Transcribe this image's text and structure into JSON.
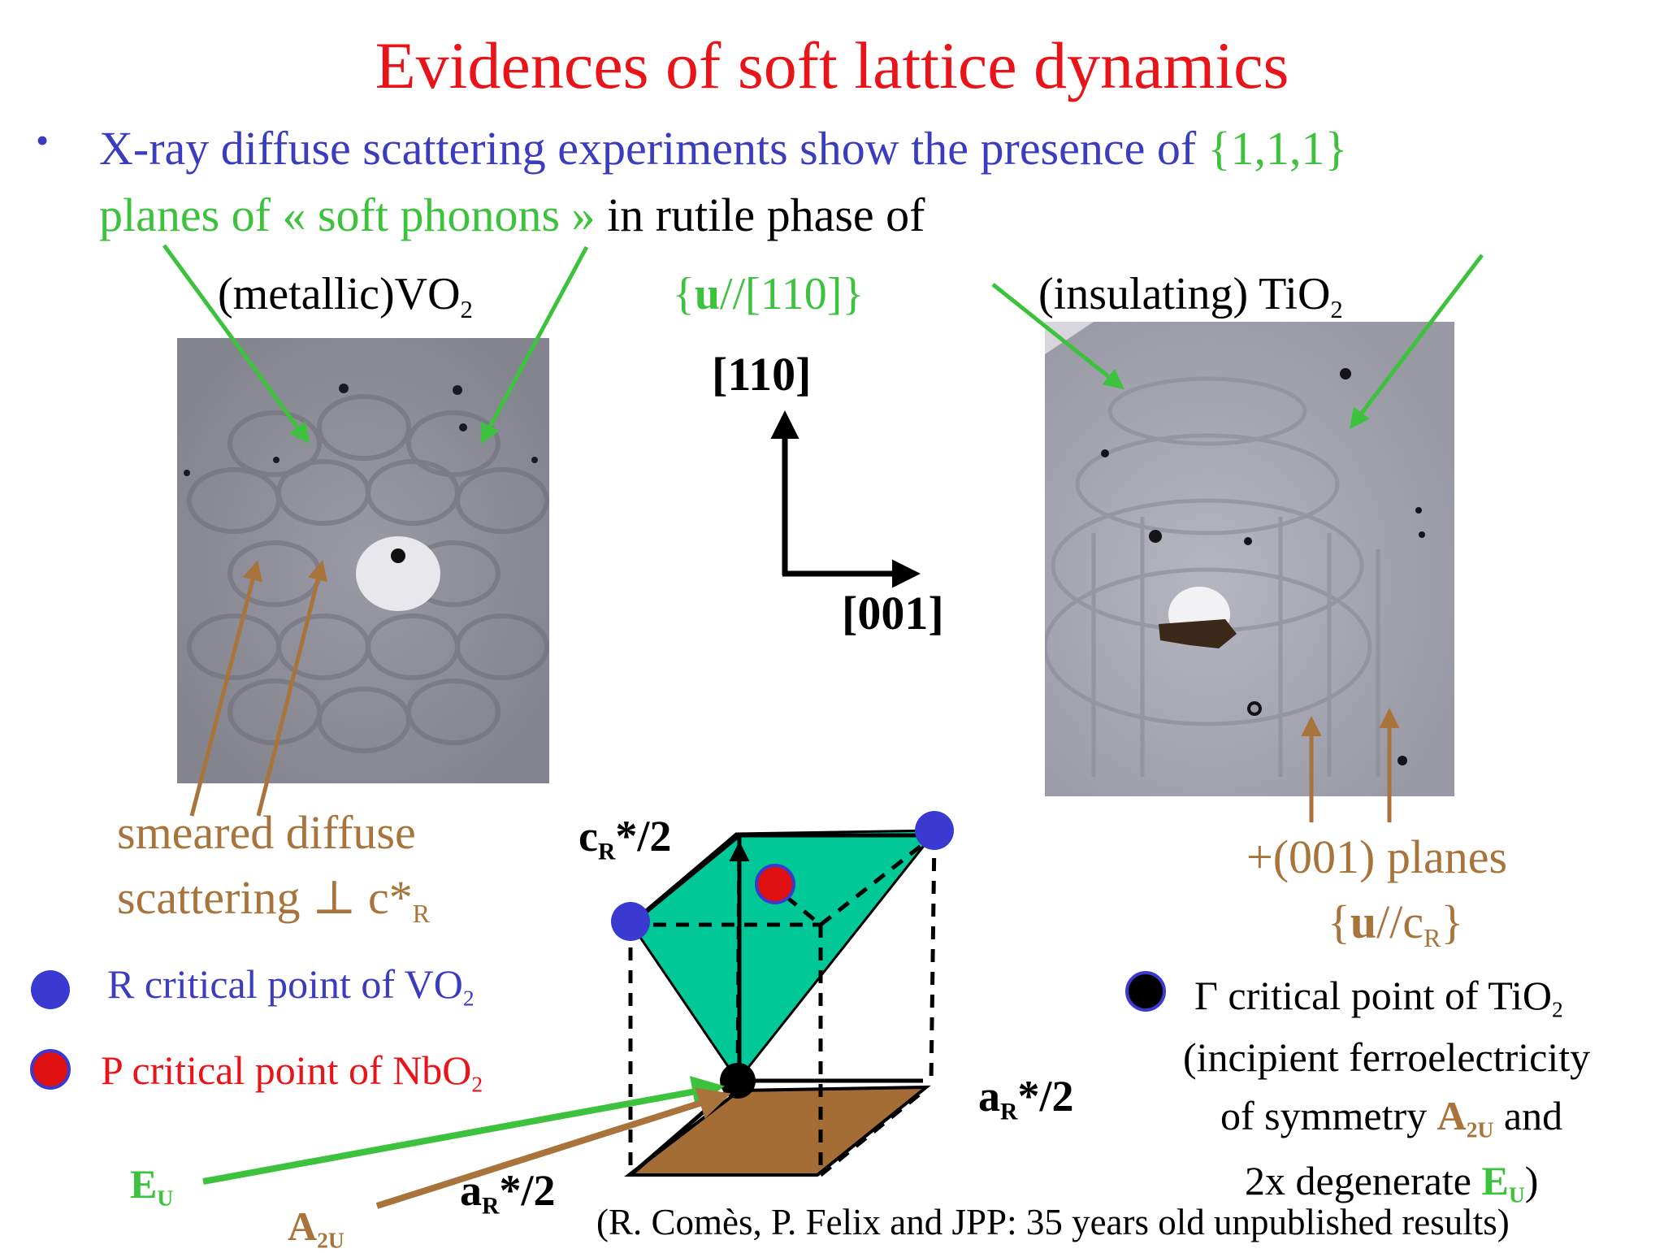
{
  "title": "Evidences of soft lattice dynamics",
  "bullet": {
    "part1": "X-ray diffuse scattering experiments show the presence of",
    "planes": "{1,1,1}",
    "part2": "planes of « soft phonons »",
    "part3": "in rutile phase of"
  },
  "labels": {
    "vo2_prefix": "(metallic)VO",
    "vo2_sub": "2",
    "tio2_prefix": "(insulating) TiO",
    "tio2_sub": "2",
    "u_open": "{",
    "u_bold": "u",
    "u_rest": "//[110]}",
    "axis_110": "[110]",
    "axis_001": "[001]",
    "smeared_line1": "smeared diffuse",
    "smeared_line2": "scattering",
    "perp": "⊥",
    "smeared_c": "c*",
    "smeared_c_sub": "R",
    "planes001": "+(001) planes",
    "uc_open": "{",
    "uc_bold": "u",
    "uc_rest": "//c",
    "uc_sub": "R",
    "uc_close": "}"
  },
  "legend": {
    "r_point_prefix": "R critical  point of VO",
    "r_point_sub": "2",
    "p_point_prefix": "P critical  point of NbO",
    "p_point_sub": "2",
    "gamma_prefix": "Γ critical  point of TiO",
    "gamma_sub": "2",
    "gamma_line2": "(incipient ferroelectricity",
    "gamma_line3_a": "of symmetry ",
    "gamma_line3_b": "A",
    "gamma_line3_sub": "2U",
    "gamma_line3_c": " and",
    "gamma_line4_a": "2x degenerate ",
    "gamma_line4_b": "E",
    "gamma_line4_sub": "U",
    "gamma_line4_c": ")"
  },
  "cube_labels": {
    "c_label": "c",
    "c_sub": "R",
    "c_rest": "*/2",
    "a_right": "a",
    "a_right_sub": "R",
    "a_right_rest": "*/2",
    "a_bottom": "a",
    "a_bottom_sub": "R",
    "a_bottom_rest": "*/2",
    "eu": "E",
    "eu_sub": "U",
    "a2u": "A",
    "a2u_sub": "2U"
  },
  "citation": "(R. Comès, P. Felix and JPP: 35 years old unpublished results)",
  "colors": {
    "title": "#e8141a",
    "blue": "#3c3cbf",
    "green": "#3cc23c",
    "brown": "#a8743c",
    "teal": "#00c896",
    "point_blue": "#3a3ad0",
    "point_red": "#e01010"
  }
}
